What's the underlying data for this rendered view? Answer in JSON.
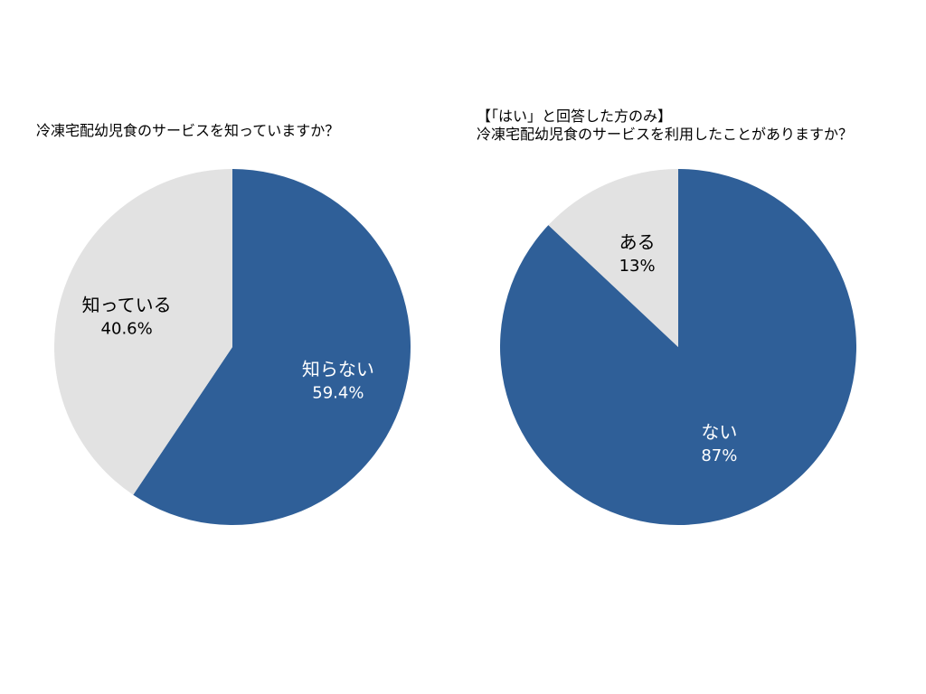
{
  "colors": {
    "blue": "#2f5f98",
    "gray": "#e2e2e2",
    "white_text": "#ffffff",
    "dark_text": "#000000"
  },
  "chart_data": [
    {
      "type": "pie",
      "title": "冷凍宅配幼児食のサービスを知っていますか？",
      "slices": [
        {
          "label": "知らない",
          "value": 59.4,
          "display": "59.4%",
          "color": "#2f5f98",
          "text_color": "#ffffff"
        },
        {
          "label": "知っている",
          "value": 40.6,
          "display": "40.6%",
          "color": "#e2e2e2",
          "text_color": "#000000"
        }
      ]
    },
    {
      "type": "pie",
      "title_prefix": "【「はい」と回答した方のみ】",
      "title": "冷凍宅配幼児食のサービスを利用したことがありますか？",
      "slices": [
        {
          "label": "ない",
          "value": 87,
          "display": "87%",
          "color": "#2f5f98",
          "text_color": "#ffffff"
        },
        {
          "label": "ある",
          "value": 13,
          "display": "13%",
          "color": "#e2e2e2",
          "text_color": "#000000"
        }
      ]
    }
  ]
}
